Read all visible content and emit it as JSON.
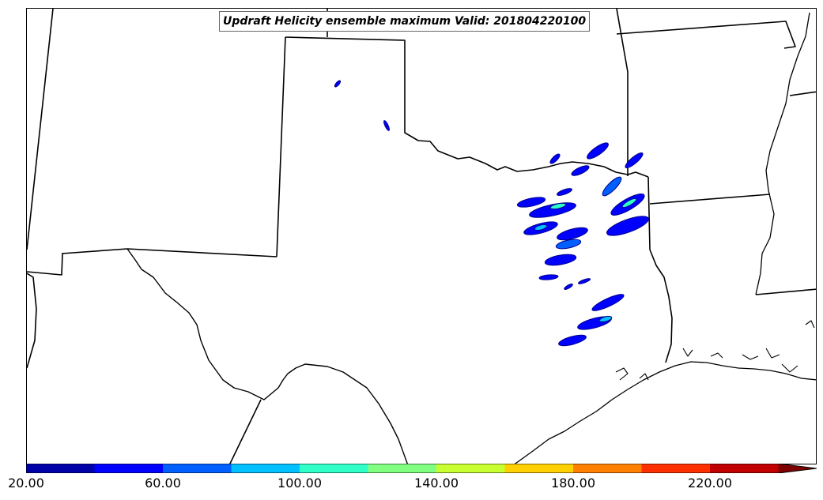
{
  "title": "Updraft Helicity ensemble maximum Valid: 201804220100",
  "colorbar": {
    "tick_labels": [
      "20.00",
      "60.00",
      "100.00",
      "140.00",
      "180.00",
      "220.00"
    ],
    "colors": [
      "#0000a8",
      "#0000ff",
      "#0060ff",
      "#00c0ff",
      "#30ffc8",
      "#80ff80",
      "#c8ff30",
      "#ffd000",
      "#ff8000",
      "#ff3000",
      "#c00000",
      "#800000"
    ],
    "extend": "max"
  },
  "map": {
    "region": "Southern Plains, United States",
    "field": "Updraft Helicity",
    "valid_time": "201804220100"
  }
}
